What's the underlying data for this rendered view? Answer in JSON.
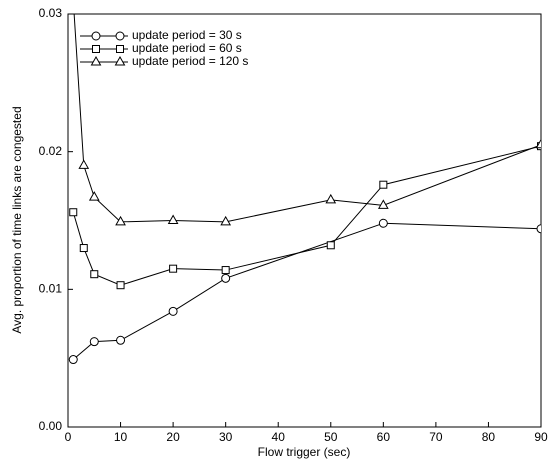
{
  "chart_data": {
    "type": "line",
    "x_label": "Flow trigger (sec)",
    "y_label": "Avg. proportion of time links are congested",
    "xlim": [
      0,
      90
    ],
    "xticks": [
      0,
      10,
      20,
      30,
      40,
      50,
      60,
      70,
      80,
      90
    ],
    "ylim": [
      0,
      0.03
    ],
    "yticks": [
      {
        "value": 0,
        "label": "0.00"
      },
      {
        "value": 0.01,
        "label": "0.01"
      },
      {
        "value": 0.02,
        "label": "0.02"
      },
      {
        "value": 0.03,
        "label": "0.03"
      }
    ],
    "legend": "upper left",
    "series": [
      {
        "name": "update period = 30 s",
        "marker": "circle",
        "color": "#000000",
        "x": [
          1,
          5,
          10,
          20,
          30,
          60,
          90
        ],
        "values": [
          0.0049,
          0.0062,
          0.0063,
          0.0084,
          0.0108,
          0.0148,
          0.0144
        ]
      },
      {
        "name": "update period = 60 s",
        "marker": "square",
        "color": "#000000",
        "x": [
          1,
          3,
          5,
          10,
          20,
          30,
          50,
          60,
          90
        ],
        "values": [
          0.0156,
          0.013,
          0.0111,
          0.0103,
          0.0115,
          0.0114,
          0.0132,
          0.0176,
          0.0204
        ]
      },
      {
        "name": "update period = 120 s",
        "marker": "triangle",
        "color": "#000000",
        "x": [
          1,
          3,
          5,
          10,
          20,
          30,
          50,
          60,
          90
        ],
        "values": [
          0.031,
          0.019,
          0.0167,
          0.0149,
          0.015,
          0.0149,
          0.0165,
          0.0161,
          0.0205
        ]
      }
    ]
  }
}
